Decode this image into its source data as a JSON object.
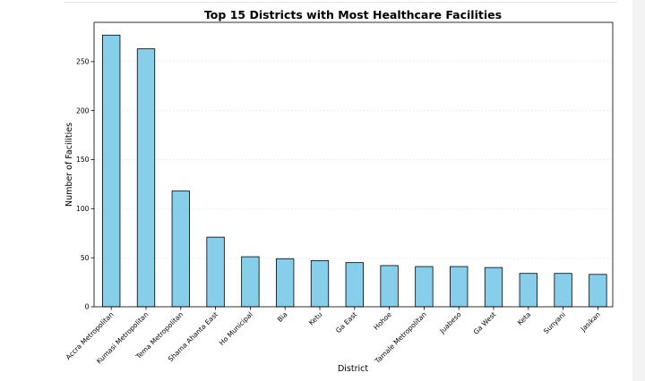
{
  "chart_data": {
    "type": "bar",
    "title": "Top 15 Districts with Most Healthcare Facilities",
    "xlabel": "District",
    "ylabel": "Number of Facilities",
    "ylim": [
      0,
      290
    ],
    "yticks": [
      0,
      50,
      100,
      150,
      200,
      250
    ],
    "grid": true,
    "bar_color": "#87ceeb",
    "edge_color": "#000000",
    "categories": [
      "Accra Metropolitan",
      "Kumasi Metropolitan",
      "Tema Metropolitan",
      "Shama Ahanta East",
      "Ho Municipal",
      "Bia",
      "Ketu",
      "Ga East",
      "Hohoe",
      "Tamale Metropolitan",
      "Juabeso",
      "Ga West",
      "Keta",
      "Sunyani",
      "Jasikan"
    ],
    "values": [
      277,
      263,
      118,
      71,
      51,
      49,
      47,
      45,
      42,
      41,
      41,
      40,
      34,
      34,
      33
    ]
  }
}
